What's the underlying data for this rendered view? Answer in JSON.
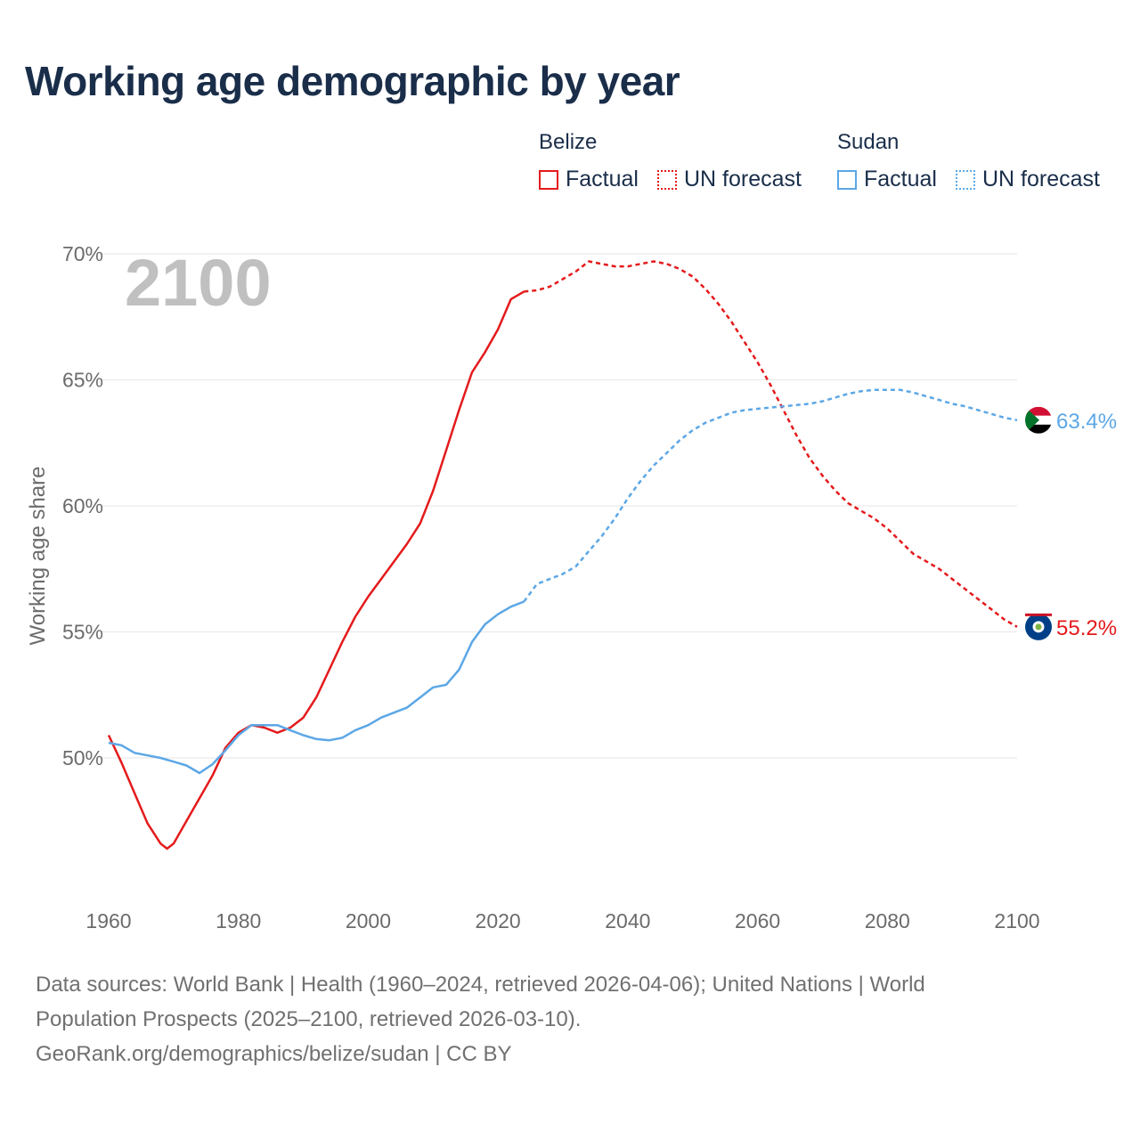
{
  "title": "Working age demographic by year",
  "legend": {
    "groups": [
      {
        "name": "Belize",
        "factual": "Factual",
        "forecast": "UN forecast"
      },
      {
        "name": "Sudan",
        "factual": "Factual",
        "forecast": "UN forecast"
      }
    ]
  },
  "colors": {
    "belize": "#e41a1c",
    "sudan": "#5ca7e6",
    "grid": "#e6e6e6",
    "axis_text": "#6b6b6b",
    "year_label": "#c0c0c0"
  },
  "footer": {
    "line1": "Data sources: World Bank | Health (1960–2024, retrieved 2026-04-06); United Nations | World",
    "line2": "Population Prospects (2025–2100, retrieved 2026-03-10).",
    "line3": "GeoRank.org/demographics/belize/sudan | CC BY"
  },
  "chart_data": {
    "type": "line",
    "title": "Working age demographic by year",
    "xlabel": "",
    "ylabel": "Working age share",
    "year_label": "2100",
    "xlim": [
      1960,
      2100
    ],
    "ylim": [
      44.5,
      70
    ],
    "x_ticks": [
      1960,
      1980,
      2000,
      2020,
      2040,
      2060,
      2080,
      2100
    ],
    "x_tick_labels": [
      "1960",
      "1980",
      "2000",
      "2020",
      "2040",
      "2060",
      "2080",
      "2100"
    ],
    "y_ticks": [
      50,
      55,
      60,
      65,
      70
    ],
    "y_tick_labels": [
      "50%",
      "55%",
      "60%",
      "65%",
      "70%"
    ],
    "grid": true,
    "factual_end": 2024,
    "series": [
      {
        "name": "Belize",
        "color": "#e41a1c",
        "end_label": "55.2%",
        "flag": "belize",
        "points": [
          [
            1960,
            50.9
          ],
          [
            1962,
            49.8
          ],
          [
            1964,
            48.6
          ],
          [
            1966,
            47.4
          ],
          [
            1968,
            46.6
          ],
          [
            1969,
            46.4
          ],
          [
            1970,
            46.6
          ],
          [
            1972,
            47.5
          ],
          [
            1974,
            48.4
          ],
          [
            1976,
            49.3
          ],
          [
            1978,
            50.4
          ],
          [
            1980,
            51.0
          ],
          [
            1982,
            51.3
          ],
          [
            1984,
            51.2
          ],
          [
            1986,
            51.0
          ],
          [
            1988,
            51.2
          ],
          [
            1990,
            51.6
          ],
          [
            1992,
            52.4
          ],
          [
            1994,
            53.5
          ],
          [
            1996,
            54.6
          ],
          [
            1998,
            55.6
          ],
          [
            2000,
            56.4
          ],
          [
            2002,
            57.1
          ],
          [
            2004,
            57.8
          ],
          [
            2006,
            58.5
          ],
          [
            2008,
            59.3
          ],
          [
            2010,
            60.6
          ],
          [
            2012,
            62.2
          ],
          [
            2014,
            63.8
          ],
          [
            2016,
            65.3
          ],
          [
            2018,
            66.1
          ],
          [
            2020,
            67.0
          ],
          [
            2022,
            68.2
          ],
          [
            2024,
            68.5
          ],
          [
            2026,
            68.55
          ],
          [
            2028,
            68.7
          ],
          [
            2030,
            69.0
          ],
          [
            2032,
            69.3
          ],
          [
            2034,
            69.7
          ],
          [
            2036,
            69.6
          ],
          [
            2038,
            69.5
          ],
          [
            2040,
            69.5
          ],
          [
            2042,
            69.6
          ],
          [
            2044,
            69.7
          ],
          [
            2046,
            69.6
          ],
          [
            2048,
            69.4
          ],
          [
            2050,
            69.1
          ],
          [
            2052,
            68.6
          ],
          [
            2054,
            68.0
          ],
          [
            2056,
            67.3
          ],
          [
            2058,
            66.5
          ],
          [
            2060,
            65.7
          ],
          [
            2062,
            64.8
          ],
          [
            2064,
            63.8
          ],
          [
            2066,
            62.8
          ],
          [
            2068,
            61.9
          ],
          [
            2070,
            61.2
          ],
          [
            2072,
            60.6
          ],
          [
            2074,
            60.1
          ],
          [
            2076,
            59.8
          ],
          [
            2078,
            59.5
          ],
          [
            2080,
            59.1
          ],
          [
            2082,
            58.6
          ],
          [
            2084,
            58.1
          ],
          [
            2086,
            57.8
          ],
          [
            2088,
            57.5
          ],
          [
            2090,
            57.1
          ],
          [
            2092,
            56.7
          ],
          [
            2094,
            56.3
          ],
          [
            2096,
            55.9
          ],
          [
            2098,
            55.5
          ],
          [
            2100,
            55.2
          ]
        ]
      },
      {
        "name": "Sudan",
        "color": "#5ca7e6",
        "end_label": "63.4%",
        "flag": "sudan",
        "points": [
          [
            1960,
            50.6
          ],
          [
            1962,
            50.5
          ],
          [
            1964,
            50.2
          ],
          [
            1966,
            50.1
          ],
          [
            1968,
            50.0
          ],
          [
            1970,
            49.85
          ],
          [
            1972,
            49.7
          ],
          [
            1974,
            49.4
          ],
          [
            1976,
            49.75
          ],
          [
            1978,
            50.3
          ],
          [
            1980,
            50.9
          ],
          [
            1982,
            51.3
          ],
          [
            1984,
            51.3
          ],
          [
            1986,
            51.3
          ],
          [
            1988,
            51.1
          ],
          [
            1990,
            50.9
          ],
          [
            1992,
            50.75
          ],
          [
            1994,
            50.7
          ],
          [
            1996,
            50.8
          ],
          [
            1998,
            51.1
          ],
          [
            2000,
            51.3
          ],
          [
            2002,
            51.6
          ],
          [
            2004,
            51.8
          ],
          [
            2006,
            52.0
          ],
          [
            2008,
            52.4
          ],
          [
            2010,
            52.8
          ],
          [
            2012,
            52.9
          ],
          [
            2014,
            53.5
          ],
          [
            2016,
            54.6
          ],
          [
            2018,
            55.3
          ],
          [
            2020,
            55.7
          ],
          [
            2022,
            56.0
          ],
          [
            2024,
            56.2
          ],
          [
            2026,
            56.9
          ],
          [
            2028,
            57.1
          ],
          [
            2030,
            57.3
          ],
          [
            2032,
            57.6
          ],
          [
            2034,
            58.2
          ],
          [
            2036,
            58.8
          ],
          [
            2038,
            59.5
          ],
          [
            2040,
            60.3
          ],
          [
            2042,
            61.0
          ],
          [
            2044,
            61.6
          ],
          [
            2046,
            62.1
          ],
          [
            2048,
            62.6
          ],
          [
            2050,
            63.0
          ],
          [
            2052,
            63.3
          ],
          [
            2054,
            63.5
          ],
          [
            2056,
            63.7
          ],
          [
            2058,
            63.8
          ],
          [
            2060,
            63.85
          ],
          [
            2062,
            63.9
          ],
          [
            2064,
            63.95
          ],
          [
            2066,
            64.0
          ],
          [
            2068,
            64.05
          ],
          [
            2070,
            64.15
          ],
          [
            2072,
            64.3
          ],
          [
            2074,
            64.45
          ],
          [
            2076,
            64.55
          ],
          [
            2078,
            64.6
          ],
          [
            2080,
            64.6
          ],
          [
            2082,
            64.6
          ],
          [
            2084,
            64.5
          ],
          [
            2086,
            64.35
          ],
          [
            2088,
            64.2
          ],
          [
            2090,
            64.05
          ],
          [
            2092,
            63.95
          ],
          [
            2094,
            63.8
          ],
          [
            2096,
            63.65
          ],
          [
            2098,
            63.5
          ],
          [
            2100,
            63.4
          ]
        ]
      }
    ]
  }
}
